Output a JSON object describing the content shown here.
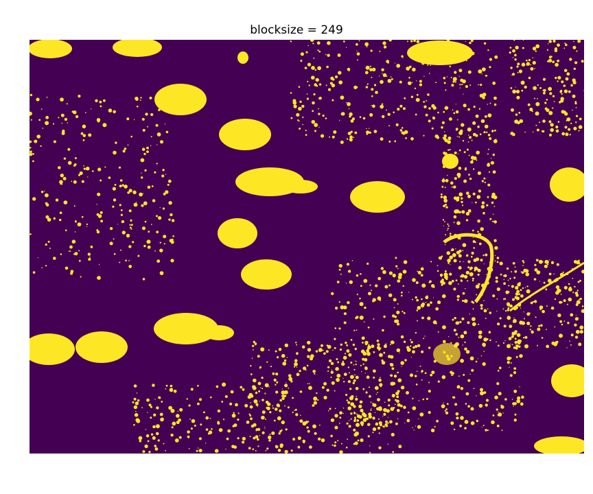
{
  "figure": {
    "title": "blocksize = 249"
  },
  "image": {
    "kind": "binary-threshold-mask",
    "colormap": "viridis",
    "background_color": "#440154",
    "foreground_color": "#FDE725"
  }
}
